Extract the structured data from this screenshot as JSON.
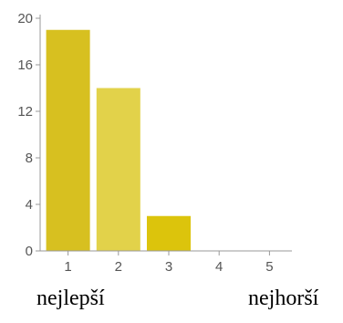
{
  "chart_data": {
    "type": "bar",
    "categories": [
      "1",
      "2",
      "3",
      "4",
      "5"
    ],
    "values": [
      19,
      14,
      3,
      0,
      0
    ],
    "ylim": [
      0,
      20
    ],
    "yticks": [
      "0",
      "4",
      "8",
      "12",
      "16",
      "20"
    ],
    "grid": false,
    "bar_colors": [
      "#d7c020",
      "#e2d24a",
      "#dcc40c",
      "#dcc40c",
      "#dcc40c"
    ],
    "axis_color": "#999999"
  },
  "captions": {
    "left": "nejlepší",
    "right": "nejhorší"
  }
}
